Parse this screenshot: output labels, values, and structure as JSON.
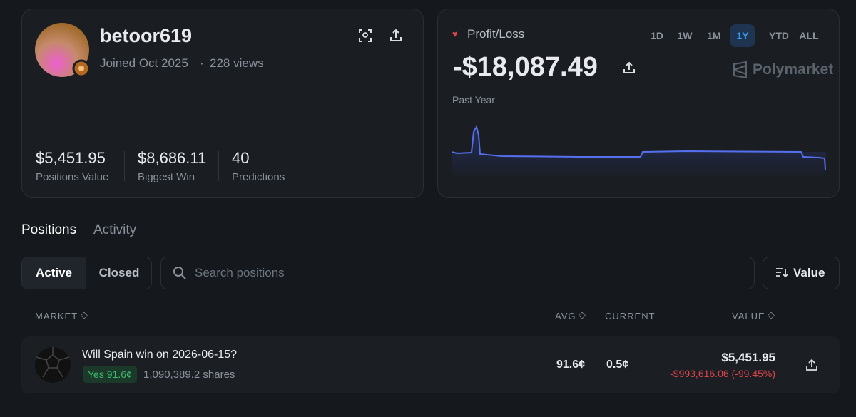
{
  "profile": {
    "username": "betoor619",
    "joined": "Joined Oct 2025",
    "views": "228 views",
    "stats": [
      {
        "value": "$5,451.95",
        "label": "Positions Value"
      },
      {
        "value": "$8,686.11",
        "label": "Biggest Win"
      },
      {
        "value": "40",
        "label": "Predictions"
      }
    ]
  },
  "pnl": {
    "title": "Profit/Loss",
    "periods": [
      "1D",
      "1W",
      "1M",
      "1Y",
      "YTD",
      "ALL"
    ],
    "active_period": 3,
    "amount": "-$18,087.49",
    "brand": "Polymarket",
    "range_label": "Past Year"
  },
  "tabs": {
    "items": [
      "Positions",
      "Activity"
    ],
    "active": 0
  },
  "filters": {
    "items": [
      "Active",
      "Closed"
    ],
    "active": 0,
    "search_placeholder": "Search positions",
    "sort": "Value"
  },
  "table": {
    "headers": [
      "MARKET",
      "AVG",
      "CURRENT",
      "VALUE"
    ],
    "rows": [
      {
        "title": "Will Spain win on 2026-06-15?",
        "outcome": "Yes 91.6¢",
        "shares": "1,090,389.2 shares",
        "avg": "91.6¢",
        "current": "0.5¢",
        "value": "$5,451.95",
        "pnl": "-$993,616.06 (-99.45%)"
      }
    ]
  }
}
